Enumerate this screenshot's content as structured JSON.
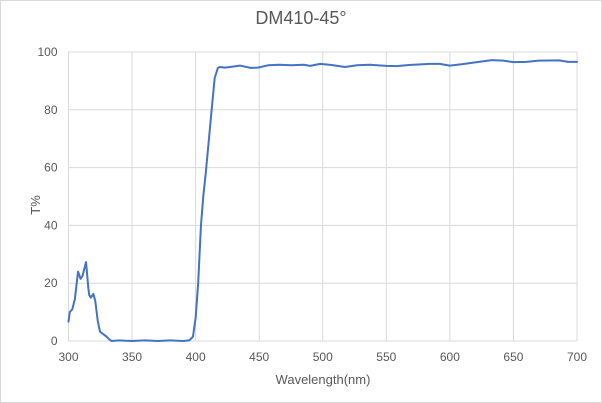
{
  "chart_data": {
    "type": "line",
    "title": "DM410-45°",
    "xlabel": "Wavelength(nm)",
    "ylabel": "T%",
    "xlim": [
      300,
      700
    ],
    "ylim": [
      0,
      100
    ],
    "x_ticks": [
      300,
      350,
      400,
      450,
      500,
      550,
      600,
      650,
      700
    ],
    "y_ticks": [
      0,
      20,
      40,
      60,
      80,
      100
    ],
    "grid": true,
    "legend": "none",
    "line_color": "#4472c4",
    "series": [
      {
        "name": "T%",
        "points": [
          [
            300,
            6.7
          ],
          [
            301,
            10.0
          ],
          [
            303,
            11.0
          ],
          [
            305,
            14.5
          ],
          [
            307.5,
            24.0
          ],
          [
            309.5,
            21.5
          ],
          [
            311,
            22.5
          ],
          [
            313.8,
            27.3
          ],
          [
            315.6,
            18.3
          ],
          [
            316.3,
            15.9
          ],
          [
            317.5,
            15.0
          ],
          [
            319.5,
            16.3
          ],
          [
            321,
            14.0
          ],
          [
            323,
            7.0
          ],
          [
            324.8,
            3.2
          ],
          [
            327,
            2.5
          ],
          [
            330,
            1.5
          ],
          [
            332,
            0.6
          ],
          [
            334,
            0.0
          ],
          [
            340,
            0.2
          ],
          [
            350,
            0.0
          ],
          [
            360,
            0.2
          ],
          [
            370,
            0.0
          ],
          [
            380,
            0.2
          ],
          [
            390,
            0.0
          ],
          [
            395,
            0.2
          ],
          [
            397.9,
            1.5
          ],
          [
            400,
            8.0
          ],
          [
            402,
            20.0
          ],
          [
            404.2,
            40.0
          ],
          [
            406,
            50.0
          ],
          [
            408.1,
            58.7
          ],
          [
            410.5,
            70.0
          ],
          [
            412.6,
            80.0
          ],
          [
            415,
            91.0
          ],
          [
            417.5,
            94.5
          ],
          [
            419,
            94.8
          ],
          [
            423,
            94.6
          ],
          [
            427,
            94.8
          ],
          [
            435,
            95.3
          ],
          [
            443,
            94.5
          ],
          [
            449,
            94.6
          ],
          [
            457,
            95.4
          ],
          [
            466,
            95.6
          ],
          [
            475,
            95.4
          ],
          [
            485,
            95.6
          ],
          [
            490,
            95.2
          ],
          [
            498,
            95.9
          ],
          [
            507,
            95.5
          ],
          [
            517.5,
            94.8
          ],
          [
            527,
            95.4
          ],
          [
            537,
            95.6
          ],
          [
            550,
            95.2
          ],
          [
            558,
            95.1
          ],
          [
            568,
            95.5
          ],
          [
            584,
            95.9
          ],
          [
            592,
            95.9
          ],
          [
            600,
            95.3
          ],
          [
            610,
            95.8
          ],
          [
            620,
            96.4
          ],
          [
            633,
            97.2
          ],
          [
            642,
            97.0
          ],
          [
            650,
            96.5
          ],
          [
            660,
            96.6
          ],
          [
            670,
            97.0
          ],
          [
            686,
            97.1
          ],
          [
            693,
            96.6
          ],
          [
            700,
            96.6
          ]
        ]
      }
    ]
  },
  "page": {
    "title": "DM410-45°",
    "xlabel": "Wavelength(nm)",
    "ylabel": "T%"
  }
}
